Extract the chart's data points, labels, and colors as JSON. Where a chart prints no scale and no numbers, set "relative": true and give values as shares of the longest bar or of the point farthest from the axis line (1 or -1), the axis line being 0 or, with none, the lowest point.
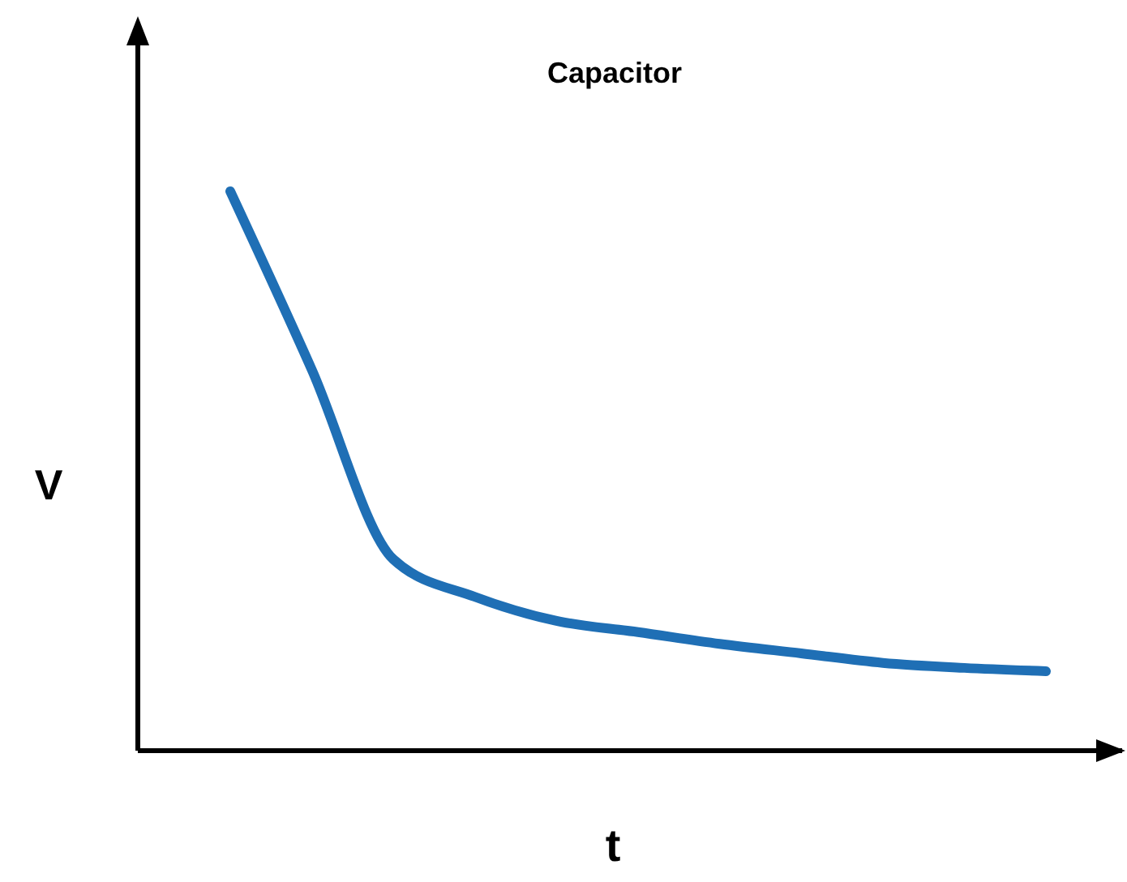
{
  "chart_data": {
    "type": "line",
    "title": "Capacitor",
    "xlabel": "t",
    "ylabel": "V",
    "relative": true,
    "categories": [
      null,
      null,
      null,
      null,
      null,
      null,
      null,
      null,
      null,
      null,
      null
    ],
    "series": [
      {
        "color": "#1f6fb5",
        "values": [
          1,
          0.681,
          0.342,
          0.275,
          0.232,
          0.212,
          0.191,
          0.174,
          0.157,
          0.148,
          0.142
        ]
      }
    ]
  }
}
